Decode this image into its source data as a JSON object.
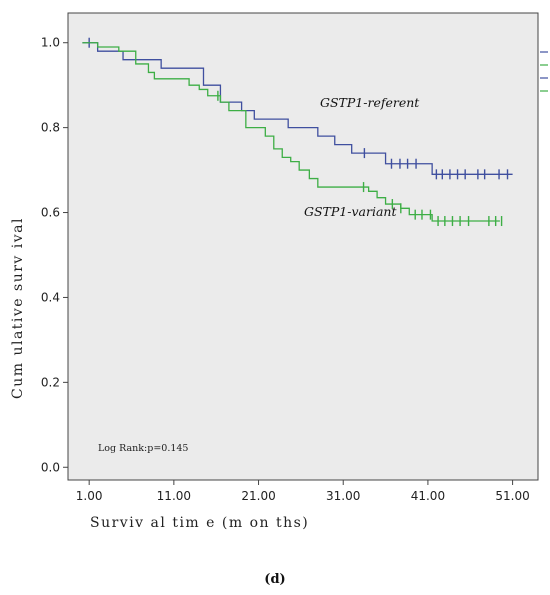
{
  "chart_data": {
    "type": "line",
    "subtype": "kaplan-meier step",
    "xlabel": "Surviv al tim e (m on ths)",
    "ylabel": "Cum ulative surv ival",
    "xlim": [
      -1.5,
      54
    ],
    "ylim": [
      -0.03,
      1.07
    ],
    "x_ticks": [
      1,
      11,
      21,
      31,
      41,
      51
    ],
    "x_tick_labels": [
      "1.00",
      "11.00",
      "21.00",
      "31.00",
      "41.00",
      "51.00"
    ],
    "y_ticks": [
      0,
      0.2,
      0.4,
      0.6,
      0.8,
      1.0
    ],
    "y_tick_labels": [
      "0.0",
      "0.2",
      "0.4",
      "0.6",
      "0.8",
      "1.0"
    ],
    "grid": false,
    "background": "#ebebeb",
    "annotation": "Log Rank:p=0.145",
    "caption": "(d)",
    "series": [
      {
        "name": "GSTP1-referent",
        "color": "#3f4f9f",
        "steps": [
          [
            0.2,
            1.0
          ],
          [
            2.0,
            0.98
          ],
          [
            5.0,
            0.96
          ],
          [
            9.5,
            0.94
          ],
          [
            14.5,
            0.9
          ],
          [
            16.5,
            0.86
          ],
          [
            19.0,
            0.84
          ],
          [
            20.5,
            0.82
          ],
          [
            24.5,
            0.8
          ],
          [
            28.0,
            0.78
          ],
          [
            30.0,
            0.76
          ],
          [
            32.0,
            0.74
          ],
          [
            36.0,
            0.715
          ],
          [
            41.5,
            0.69
          ],
          [
            51.0,
            0.69
          ]
        ],
        "censored": [
          1.0,
          33.5,
          36.7,
          37.7,
          38.6,
          39.6,
          42.0,
          42.7,
          43.6,
          44.5,
          45.4,
          46.9,
          47.7,
          49.4,
          50.4
        ]
      },
      {
        "name": "GSTP1-variant",
        "color": "#3dae45",
        "steps": [
          [
            0.2,
            1.0
          ],
          [
            2.0,
            0.99
          ],
          [
            4.5,
            0.98
          ],
          [
            6.5,
            0.95
          ],
          [
            8.0,
            0.93
          ],
          [
            8.7,
            0.915
          ],
          [
            12.8,
            0.9
          ],
          [
            14.0,
            0.89
          ],
          [
            15.0,
            0.875
          ],
          [
            16.5,
            0.86
          ],
          [
            17.5,
            0.84
          ],
          [
            19.5,
            0.8
          ],
          [
            21.8,
            0.78
          ],
          [
            22.8,
            0.75
          ],
          [
            23.8,
            0.73
          ],
          [
            24.8,
            0.72
          ],
          [
            25.8,
            0.7
          ],
          [
            27.0,
            0.68
          ],
          [
            28.0,
            0.66
          ],
          [
            34.0,
            0.65
          ],
          [
            35.0,
            0.635
          ],
          [
            36.0,
            0.62
          ],
          [
            37.8,
            0.61
          ],
          [
            38.8,
            0.595
          ],
          [
            41.5,
            0.58
          ],
          [
            49.5,
            0.58
          ]
        ],
        "censored": [
          16.2,
          33.4,
          36.8,
          37.8,
          39.5,
          40.3,
          41.3,
          42.2,
          43.0,
          43.9,
          44.8,
          45.8,
          48.2,
          49.0,
          49.7
        ]
      }
    ],
    "label_texts": [
      "GSTP1-referent",
      "GSTP1-variant"
    ],
    "legend_colors": [
      "#3f4f9f",
      "#3dae45",
      "#3f4f9f",
      "#3dae45"
    ]
  }
}
